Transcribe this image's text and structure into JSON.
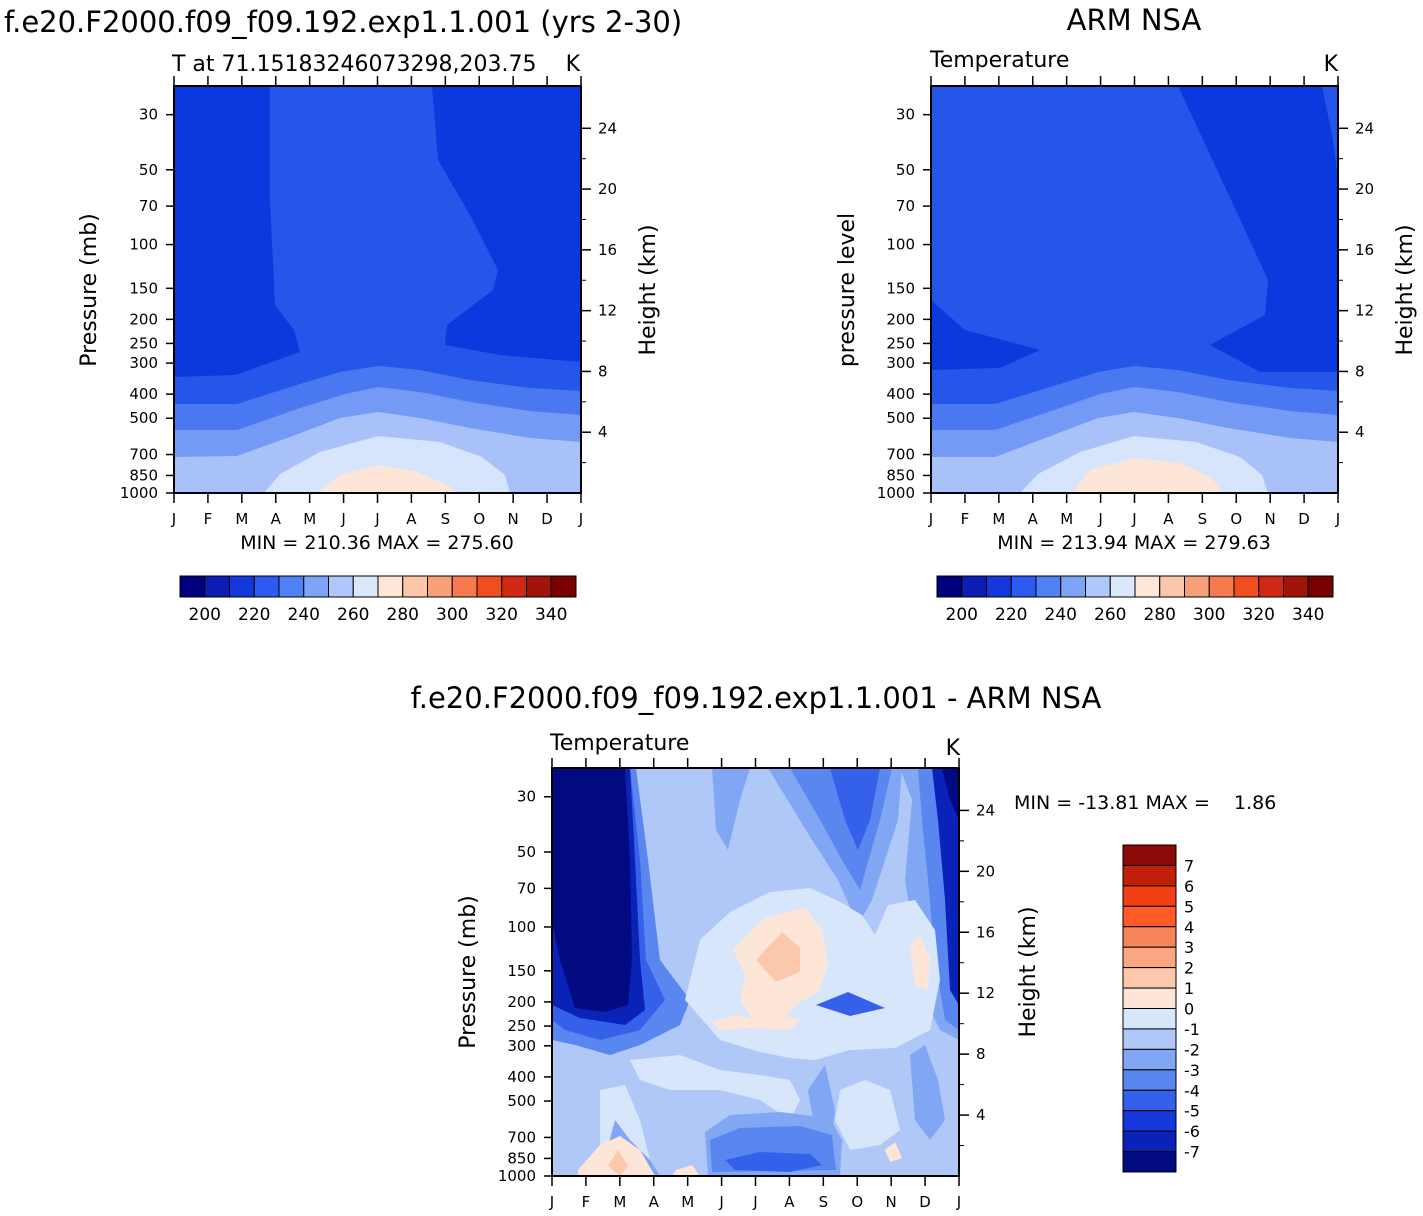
{
  "figure": {
    "left_title": "f.e20.F2000.f09_f09.192.exp1.1.001 (yrs 2-30)",
    "right_title": "ARM NSA",
    "bottom_title": "f.e20.F2000.f09_f09.192.exp1.1.001 - ARM NSA"
  },
  "chart_data": [
    {
      "type": "contour",
      "id": "model",
      "subtitle_left": "T at 71.15183246073298,203.75",
      "subtitle_right": "K",
      "ylabel": "Pressure (mb)",
      "y2label": "Height (km)",
      "stats": "MIN = 210.36 MAX = 275.60",
      "x_ticks": [
        "J",
        "F",
        "M",
        "A",
        "M",
        "J",
        "J",
        "A",
        "S",
        "O",
        "N",
        "D",
        "J"
      ],
      "y_ticks": [
        30,
        50,
        70,
        100,
        150,
        200,
        250,
        300,
        400,
        500,
        700,
        850,
        1000
      ],
      "ylim": [
        1000,
        23
      ],
      "y2_ticks": [
        4,
        8,
        12,
        16,
        20,
        24
      ],
      "colorbar": {
        "orientation": "horizontal",
        "labels": [
          "200",
          "220",
          "240",
          "260",
          "280",
          "300",
          "320",
          "340"
        ],
        "colors": [
          "#00007f",
          "#0a1eb4",
          "#1438dc",
          "#2d5af0",
          "#5082f5",
          "#7ea4f8",
          "#afc8fa",
          "#dbe8fb",
          "#ffe6d6",
          "#fcc7a8",
          "#f6a07a",
          "#f77a4e",
          "#f04e1e",
          "#d02814",
          "#a0140a",
          "#780000"
        ]
      },
      "levels": [
        {
          "value": "<225",
          "color": "#0a3ade"
        },
        {
          "value": "225-235",
          "color": "#2456ea"
        },
        {
          "value": "235-245",
          "color": "#4a78f0"
        },
        {
          "value": "245-255",
          "color": "#749af5"
        },
        {
          "value": "255-265",
          "color": "#a8c1f8"
        },
        {
          "value": "265-275",
          "color": "#d6e5fb"
        },
        {
          "value": ">275",
          "color": "#fde5d8"
        }
      ]
    },
    {
      "type": "contour",
      "id": "obs",
      "subtitle_left": "Temperature",
      "subtitle_right": "K",
      "ylabel": "pressure level",
      "y2label": "Height (km)",
      "stats": "MIN = 213.94 MAX = 279.63",
      "x_ticks": [
        "J",
        "F",
        "M",
        "A",
        "M",
        "J",
        "J",
        "A",
        "S",
        "O",
        "N",
        "D",
        "J"
      ],
      "y_ticks": [
        30,
        50,
        70,
        100,
        150,
        200,
        250,
        300,
        400,
        500,
        700,
        850,
        1000
      ],
      "ylim": [
        1000,
        23
      ],
      "y2_ticks": [
        4,
        8,
        12,
        16,
        20,
        24
      ],
      "colorbar": {
        "orientation": "horizontal",
        "labels": [
          "200",
          "220",
          "240",
          "260",
          "280",
          "300",
          "320",
          "340"
        ],
        "colors": [
          "#00007f",
          "#0a1eb4",
          "#1438dc",
          "#2d5af0",
          "#5082f5",
          "#7ea4f8",
          "#afc8fa",
          "#dbe8fb",
          "#ffe6d6",
          "#fcc7a8",
          "#f6a07a",
          "#f77a4e",
          "#f04e1e",
          "#d02814",
          "#a0140a",
          "#780000"
        ]
      }
    },
    {
      "type": "contour",
      "id": "diff",
      "subtitle_left": "Temperature",
      "subtitle_right": "K",
      "ylabel": "Pressure (mb)",
      "y2label": "Height (km)",
      "stats": "MIN = -13.81 MAX =    1.86",
      "x_ticks": [
        "J",
        "F",
        "M",
        "A",
        "M",
        "J",
        "J",
        "A",
        "S",
        "O",
        "N",
        "D",
        "J"
      ],
      "y_ticks": [
        30,
        50,
        70,
        100,
        150,
        200,
        250,
        300,
        400,
        500,
        700,
        850,
        1000
      ],
      "ylim": [
        1000,
        23
      ],
      "y2_ticks": [
        4,
        8,
        12,
        16,
        20,
        24
      ],
      "colorbar": {
        "orientation": "vertical",
        "labels": [
          "7",
          "6",
          "5",
          "4",
          "3",
          "2",
          "1",
          "0",
          "-1",
          "-2",
          "-3",
          "-4",
          "-5",
          "-6",
          "-7"
        ],
        "colors": [
          "#8c0a0a",
          "#c0200a",
          "#f04014",
          "#ff5a28",
          "#f7845a",
          "#faa682",
          "#fcc8ac",
          "#fde6d8",
          "#d8e6fb",
          "#b0c8f8",
          "#80a6f4",
          "#5a86f0",
          "#3460ea",
          "#1438dc",
          "#0a22b8",
          "#020a82"
        ]
      }
    }
  ]
}
